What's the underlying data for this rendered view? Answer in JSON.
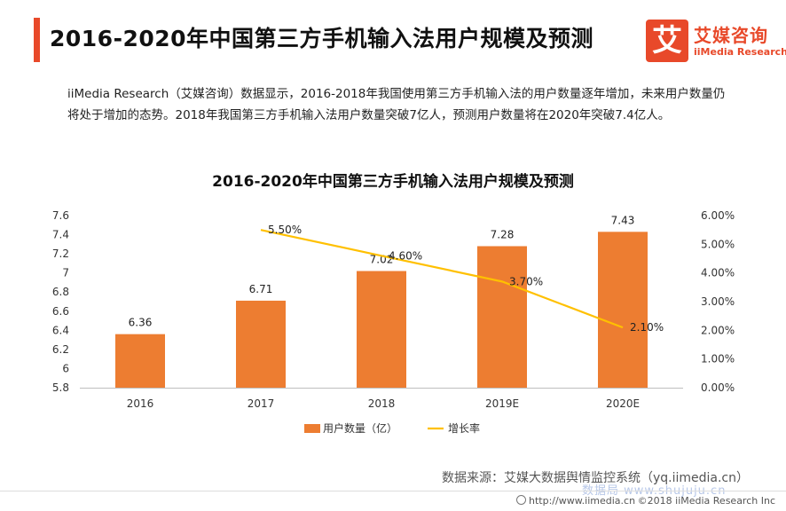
{
  "header": {
    "title": "2016-2020年中国第三方手机输入法用户规模及预测"
  },
  "logo": {
    "mark": "艾",
    "name_cn": "艾媒咨询",
    "name_en": "iiMedia Research"
  },
  "description": "iiMedia Research（艾媒咨询）数据显示，2016-2018年我国使用第三方手机输入法的用户数量逐年增加，未来用户数量仍将处于增加的态势。2018年我国第三方手机输入法用户数量突破7亿人，预测用户数量将在2020年突破7.4亿人。",
  "chart_data": {
    "type": "bar",
    "title": "2016-2020年中国第三方手机输入法用户规模及预测",
    "categories": [
      "2016",
      "2017",
      "2018",
      "2019E",
      "2020E"
    ],
    "series": [
      {
        "name": "用户数量（亿）",
        "type": "bar",
        "axis": "left",
        "color": "#ed7d31",
        "values": [
          6.36,
          6.71,
          7.02,
          7.28,
          7.43
        ],
        "labels": [
          "6.36",
          "6.71",
          "7.02",
          "7.28",
          "7.43"
        ]
      },
      {
        "name": "增长率",
        "type": "line",
        "axis": "right",
        "color": "#ffc000",
        "values": [
          null,
          5.5,
          4.6,
          3.7,
          2.1
        ],
        "labels": [
          null,
          "5.50%",
          "4.60%",
          "3.70%",
          "2.10%"
        ]
      }
    ],
    "y_left": {
      "min": 5.8,
      "max": 7.6,
      "ticks": [
        "5.8",
        "6",
        "6.2",
        "6.4",
        "6.6",
        "6.8",
        "7",
        "7.2",
        "7.4",
        "7.6"
      ]
    },
    "y_right": {
      "min": 0,
      "max": 6,
      "ticks": [
        "0.00%",
        "1.00%",
        "2.00%",
        "3.00%",
        "4.00%",
        "5.00%",
        "6.00%"
      ]
    },
    "legend_position": "bottom",
    "grid": false
  },
  "source": "数据来源：艾媒大数据舆情监控系统（yq.iimedia.cn）",
  "watermark": "数据局 www.shujuju.cn",
  "footer": {
    "url": "http://www.iimedia.cn",
    "copyright": "©2018  iiMedia Research Inc"
  }
}
